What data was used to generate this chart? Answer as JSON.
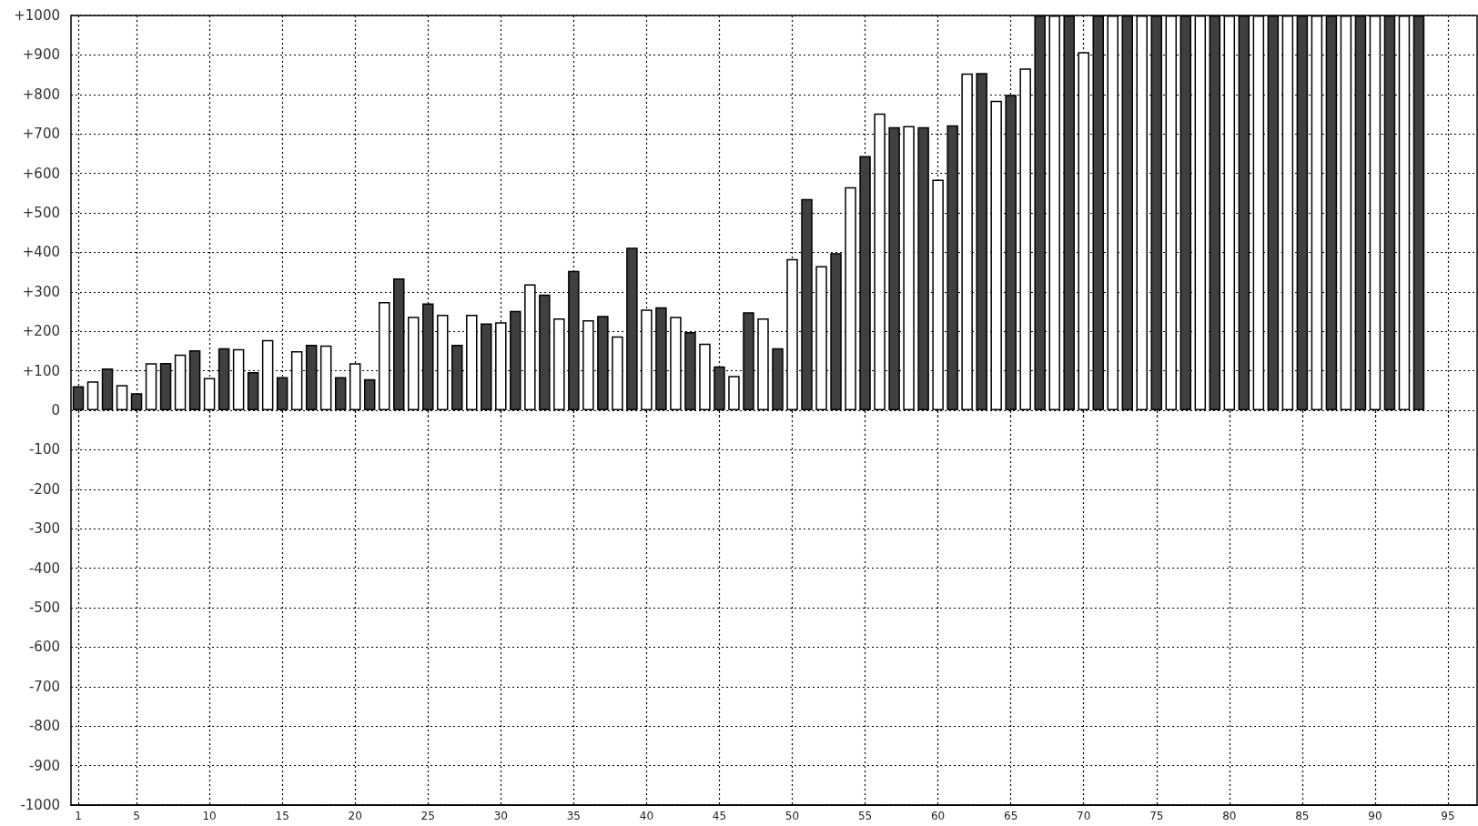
{
  "chart_data": {
    "type": "bar",
    "x": [
      1,
      2,
      3,
      4,
      5,
      6,
      7,
      8,
      9,
      10,
      11,
      12,
      13,
      14,
      15,
      16,
      17,
      18,
      19,
      20,
      21,
      22,
      23,
      24,
      25,
      26,
      27,
      28,
      29,
      30,
      31,
      32,
      33,
      34,
      35,
      36,
      37,
      38,
      39,
      40,
      41,
      42,
      43,
      44,
      45,
      46,
      47,
      48,
      49,
      50,
      51,
      52,
      53,
      54,
      55,
      56,
      57,
      58,
      59,
      60,
      61,
      62,
      63,
      64,
      65,
      66,
      67,
      68,
      69,
      70,
      71,
      72,
      73,
      74,
      75,
      76,
      77,
      78,
      79,
      80,
      81,
      82,
      83,
      84,
      85,
      86,
      87,
      88,
      89,
      90,
      91,
      92,
      93
    ],
    "values": [
      61,
      73,
      106,
      64,
      43,
      119,
      120,
      141,
      152,
      82,
      157,
      155,
      97,
      178,
      84,
      150,
      166,
      164,
      84,
      119,
      79,
      274,
      334,
      237,
      271,
      242,
      166,
      242,
      220,
      223,
      252,
      319,
      293,
      233,
      353,
      228,
      239,
      187,
      412,
      255,
      261,
      237,
      198,
      169,
      111,
      87,
      248,
      233,
      157,
      383,
      535,
      365,
      398,
      565,
      644,
      752,
      717,
      720,
      717,
      584,
      722,
      853,
      854,
      784,
      799,
      866,
      1000,
      1000,
      1000,
      907,
      1000,
      1000,
      1000,
      1000,
      1000,
      1000,
      1000,
      1000,
      1000,
      1000,
      1000,
      1000,
      1000,
      1000,
      1000,
      1000,
      1000,
      1000,
      1000,
      1000,
      1000,
      1000,
      1000
    ],
    "colors": [
      "#404040",
      "#ffffff",
      "#404040",
      "#ffffff",
      "#404040",
      "#ffffff",
      "#404040",
      "#ffffff",
      "#404040",
      "#ffffff",
      "#404040",
      "#ffffff",
      "#404040",
      "#ffffff",
      "#404040",
      "#ffffff",
      "#404040",
      "#ffffff",
      "#404040",
      "#ffffff",
      "#404040",
      "#ffffff",
      "#404040",
      "#ffffff",
      "#404040",
      "#ffffff",
      "#404040",
      "#ffffff",
      "#404040",
      "#ffffff",
      "#404040",
      "#ffffff",
      "#404040",
      "#ffffff",
      "#404040",
      "#ffffff",
      "#404040",
      "#ffffff",
      "#404040",
      "#ffffff",
      "#404040",
      "#ffffff",
      "#404040",
      "#ffffff",
      "#404040",
      "#ffffff",
      "#404040",
      "#ffffff",
      "#404040",
      "#ffffff",
      "#404040",
      "#ffffff",
      "#404040",
      "#ffffff",
      "#404040",
      "#ffffff",
      "#404040",
      "#ffffff",
      "#404040",
      "#ffffff",
      "#404040",
      "#ffffff",
      "#404040",
      "#ffffff",
      "#404040",
      "#ffffff",
      "#404040",
      "#ffffff",
      "#404040",
      "#ffffff",
      "#404040",
      "#ffffff",
      "#404040",
      "#ffffff",
      "#404040",
      "#ffffff",
      "#404040",
      "#ffffff",
      "#404040",
      "#ffffff",
      "#404040",
      "#ffffff",
      "#404040",
      "#ffffff",
      "#404040",
      "#ffffff",
      "#404040",
      "#ffffff",
      "#404040",
      "#ffffff",
      "#404040",
      "#ffffff",
      "#404040"
    ],
    "xlim": [
      0.5,
      97
    ],
    "xticks": [
      1,
      5,
      10,
      15,
      20,
      25,
      30,
      35,
      40,
      45,
      50,
      55,
      60,
      65,
      70,
      75,
      80,
      85,
      90,
      95
    ],
    "ylim": [
      -1000,
      1000
    ],
    "yticks": [
      {
        "value": 1000,
        "label": "+1000"
      },
      {
        "value": 900,
        "label": "+900"
      },
      {
        "value": 800,
        "label": "+800"
      },
      {
        "value": 700,
        "label": "+700"
      },
      {
        "value": 600,
        "label": "+600"
      },
      {
        "value": 500,
        "label": "+500"
      },
      {
        "value": 400,
        "label": "+400"
      },
      {
        "value": 300,
        "label": "+300"
      },
      {
        "value": 200,
        "label": "+200"
      },
      {
        "value": 100,
        "label": "+100"
      },
      0,
      -100,
      -200,
      -300,
      -400,
      -500,
      -600,
      -700,
      -800,
      -900,
      -1000
    ],
    "grid": true
  }
}
